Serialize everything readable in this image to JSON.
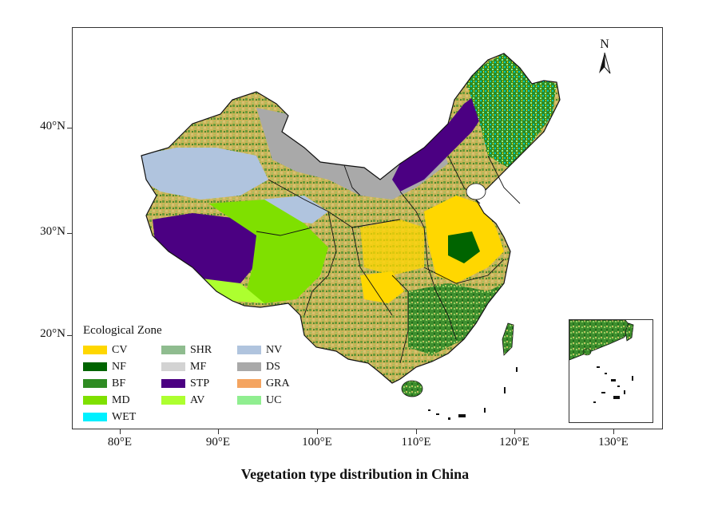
{
  "map": {
    "y_ticks": [
      "40°N",
      "30°N",
      "20°N"
    ],
    "x_ticks": [
      "80°E",
      "90°E",
      "100°E",
      "110°E",
      "120°E",
      "130°E"
    ],
    "north_label": "N"
  },
  "legend": {
    "title": "Ecological Zone",
    "items": [
      {
        "label": "CV",
        "color": "#FFD700"
      },
      {
        "label": "NF",
        "color": "#006400"
      },
      {
        "label": "BF",
        "color": "#2E8B22"
      },
      {
        "label": "MD",
        "color": "#7FE000"
      },
      {
        "label": "WET",
        "color": "#00F0FF"
      },
      {
        "label": "SHR",
        "color": "#8FBC8F"
      },
      {
        "label": "MF",
        "color": "#D3D3D3"
      },
      {
        "label": "STP",
        "color": "#4B0082"
      },
      {
        "label": "AV",
        "color": "#ADFF2F"
      },
      {
        "label": "NV",
        "color": "#B0C4DE"
      },
      {
        "label": "DS",
        "color": "#A9A9A9"
      },
      {
        "label": "GRA",
        "color": "#F4A460"
      },
      {
        "label": "UC",
        "color": "#90EE90"
      }
    ]
  },
  "caption": "Vegetation type distribution in China"
}
